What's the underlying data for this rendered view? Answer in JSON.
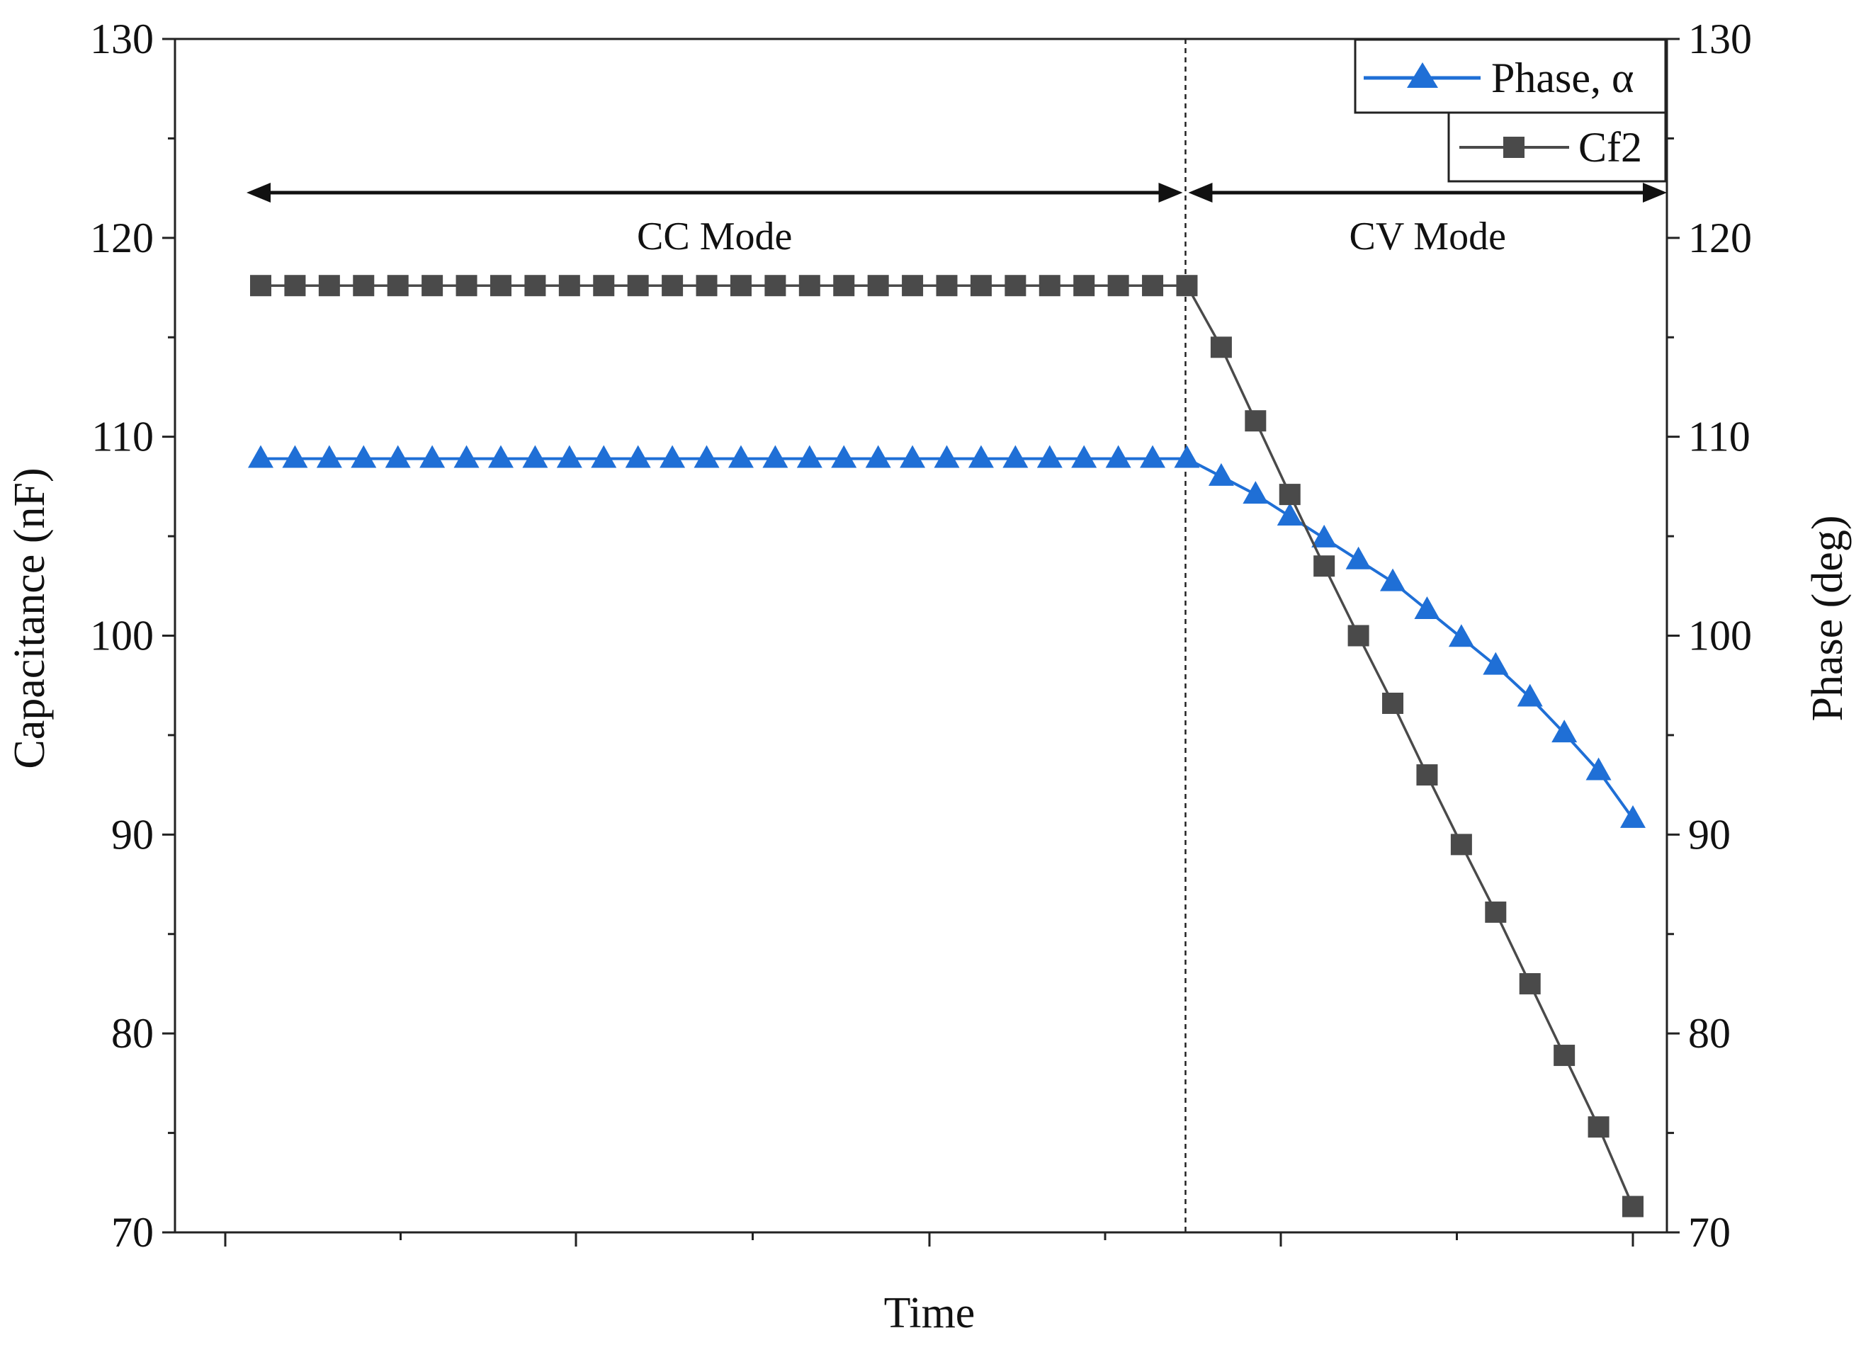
{
  "chart_data": {
    "type": "line",
    "xlabel": "Time",
    "ylabel_left": "Capacitance (nF)",
    "ylabel_right": "Phase (deg)",
    "ylim_left": [
      70,
      130
    ],
    "ylim_right": [
      70,
      130
    ],
    "y_ticks": [
      "70",
      "80",
      "90",
      "100",
      "110",
      "120",
      "130"
    ],
    "x_ticks_shown": false,
    "regions": [
      {
        "label": "CC Mode",
        "from": 0,
        "to": 27
      },
      {
        "label": "CV Mode",
        "from": 27,
        "to": 41
      }
    ],
    "mode_boundary_x": 27,
    "series": [
      {
        "name": "Phase, α",
        "axis": "right",
        "color": "#1f6fd6",
        "marker": "triangle",
        "values": [
          108.9,
          108.9,
          108.9,
          108.9,
          108.9,
          108.9,
          108.9,
          108.9,
          108.9,
          108.9,
          108.9,
          108.9,
          108.9,
          108.9,
          108.9,
          108.9,
          108.9,
          108.9,
          108.9,
          108.9,
          108.9,
          108.9,
          108.9,
          108.9,
          108.9,
          108.9,
          108.9,
          108.9,
          108.0,
          107.1,
          106.0,
          104.9,
          103.8,
          102.7,
          101.3,
          99.9,
          98.5,
          96.9,
          95.1,
          93.2,
          90.8
        ]
      },
      {
        "name": "Cf2",
        "axis": "left",
        "color": "#4a4a4a",
        "marker": "square",
        "values": [
          117.6,
          117.6,
          117.6,
          117.6,
          117.6,
          117.6,
          117.6,
          117.6,
          117.6,
          117.6,
          117.6,
          117.6,
          117.6,
          117.6,
          117.6,
          117.6,
          117.6,
          117.6,
          117.6,
          117.6,
          117.6,
          117.6,
          117.6,
          117.6,
          117.6,
          117.6,
          117.6,
          117.6,
          114.5,
          110.8,
          107.1,
          103.5,
          100.0,
          96.6,
          93.0,
          89.5,
          86.1,
          82.5,
          78.9,
          75.3,
          71.3
        ]
      }
    ]
  }
}
